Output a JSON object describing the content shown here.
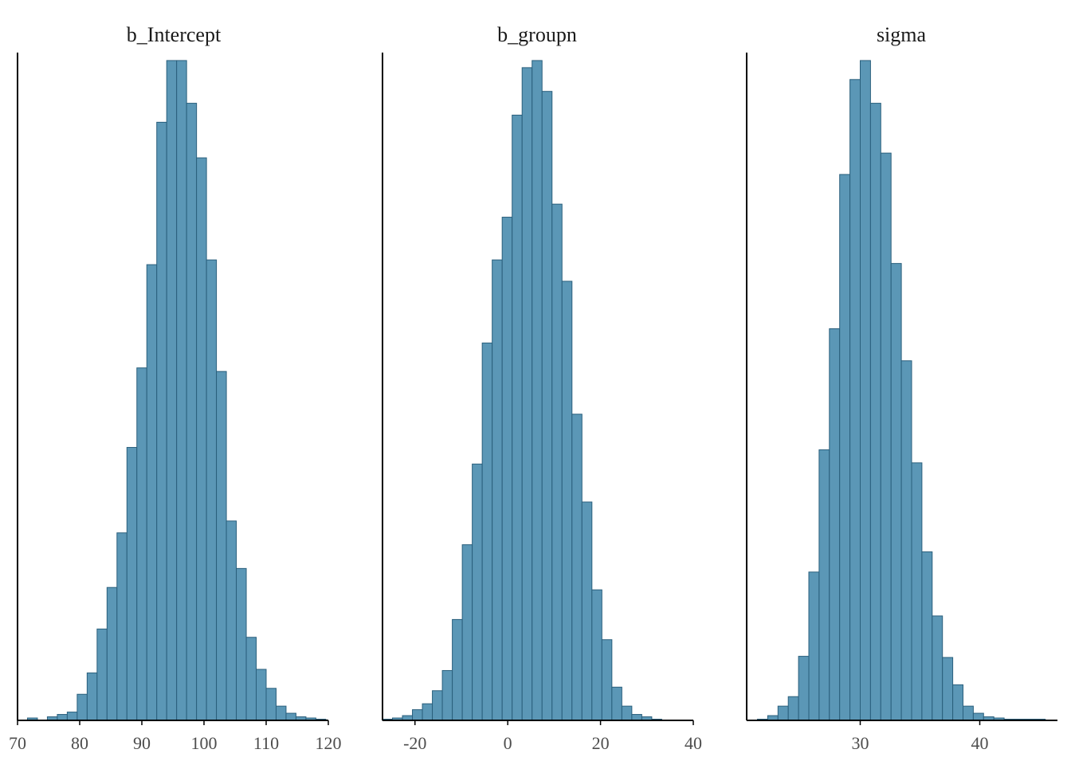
{
  "figure": {
    "type": "histogram-facets"
  },
  "colors": {
    "bar_fill": "#5b97b6",
    "bar_stroke": "#2a5f7c",
    "axis": "#000000",
    "tick_text": "#4d4d4d"
  },
  "chart_data": [
    {
      "type": "bar",
      "title": "b_Intercept",
      "xlim": [
        70,
        120
      ],
      "xticks": [
        70,
        80,
        90,
        100,
        110,
        120
      ],
      "xtick_labels": [
        "70",
        "80",
        "90",
        "100",
        "110",
        "120"
      ],
      "bin_start": 71.6,
      "bin_width": 1.6,
      "counts": [
        2,
        0,
        3,
        5,
        7,
        22,
        40,
        77,
        112,
        158,
        230,
        297,
        384,
        504,
        556,
        556,
        520,
        474,
        388,
        294,
        168,
        128,
        70,
        43,
        27,
        12,
        6,
        3,
        2,
        1
      ],
      "ylim": [
        0,
        560
      ]
    },
    {
      "type": "bar",
      "title": "b_groupn",
      "xlim": [
        -27,
        40
      ],
      "xticks": [
        -20,
        0,
        20,
        40
      ],
      "xtick_labels": [
        "-20",
        "0",
        "20",
        "40"
      ],
      "bin_start": -27.0,
      "bin_width": 2.15,
      "counts": [
        1,
        2,
        4,
        9,
        14,
        25,
        42,
        85,
        148,
        216,
        318,
        388,
        424,
        510,
        550,
        556,
        530,
        435,
        370,
        258,
        184,
        110,
        68,
        28,
        12,
        5,
        3,
        1
      ],
      "ylim": [
        0,
        560
      ]
    },
    {
      "type": "bar",
      "title": "sigma",
      "xlim": [
        20.5,
        46.5
      ],
      "xticks": [
        30,
        40
      ],
      "xtick_labels": [
        "30",
        "40"
      ],
      "bin_start": 21.4,
      "bin_width": 0.86,
      "counts": [
        1,
        4,
        12,
        20,
        54,
        125,
        228,
        330,
        460,
        540,
        556,
        520,
        478,
        385,
        303,
        217,
        142,
        88,
        53,
        30,
        12,
        6,
        3,
        2,
        1,
        1,
        1,
        1
      ],
      "ylim": [
        0,
        560
      ]
    }
  ]
}
